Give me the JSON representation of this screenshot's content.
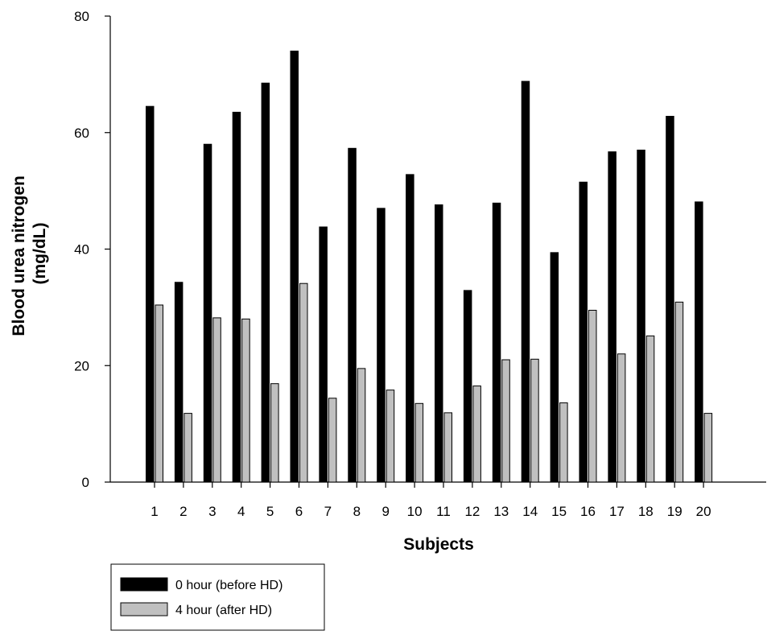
{
  "chart_data": {
    "type": "bar",
    "xlabel": "Subjects",
    "ylabel_lines": [
      "Blood urea nitrogen",
      "(mg/dL)"
    ],
    "ylim": [
      0,
      80
    ],
    "yticks": [
      0,
      20,
      40,
      60,
      80
    ],
    "grid": false,
    "legend_position": "bottom-left",
    "categories": [
      "1",
      "2",
      "3",
      "4",
      "5",
      "6",
      "7",
      "8",
      "9",
      "10",
      "11",
      "12",
      "13",
      "14",
      "15",
      "16",
      "17",
      "18",
      "19",
      "20"
    ],
    "series": [
      {
        "name": "0 hour (before HD)",
        "color": "#000000",
        "values": [
          64.5,
          34.3,
          58.0,
          63.5,
          68.5,
          74.0,
          43.8,
          57.3,
          47.0,
          52.8,
          47.6,
          32.9,
          47.9,
          68.8,
          39.4,
          51.5,
          56.7,
          57.0,
          62.8,
          48.1
        ]
      },
      {
        "name": "4 hour (after HD)",
        "color": "#c0c0c0",
        "values": [
          30.4,
          11.8,
          28.2,
          28.0,
          16.9,
          34.1,
          14.4,
          19.5,
          15.8,
          13.5,
          11.9,
          16.5,
          21.0,
          21.1,
          13.6,
          29.5,
          22.0,
          25.1,
          30.9,
          11.8
        ]
      }
    ]
  }
}
